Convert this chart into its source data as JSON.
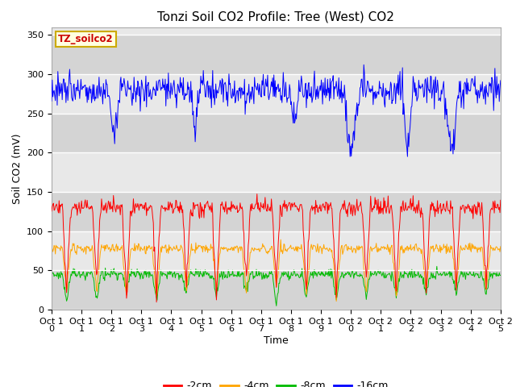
{
  "title": "Tonzi Soil CO2 Profile: Tree (West) CO2",
  "ylabel": "Soil CO2 (mV)",
  "xlabel": "Time",
  "label_box": "TZ_soilco2",
  "x_tick_labels": [
    "Oct 1\n0",
    "Oct 1\n1",
    "Oct 1\n2",
    "Oct 1\n3",
    "Oct 1\n4",
    "Oct 1\n5",
    "Oct 1\n6",
    "Oct 1\n7",
    "Oct 1\n8",
    "Oct 1\n9",
    "Oct 2\n0",
    "Oct 2\n1",
    "Oct 2\n2",
    "Oct 2\n3",
    "Oct 2\n4",
    "Oct 2\n5"
  ],
  "ylim": [
    0,
    360
  ],
  "yticks": [
    0,
    50,
    100,
    150,
    200,
    250,
    300,
    350
  ],
  "colors": {
    "2cm": "#ff0000",
    "4cm": "#ffa500",
    "8cm": "#00bb00",
    "16cm": "#0000ff"
  },
  "legend_labels": [
    "-2cm",
    "-4cm",
    "-8cm",
    "-16cm"
  ],
  "background_color": "#ffffff",
  "plot_bg_color": "#e8e8e8",
  "band_colors": [
    "#d8d8d8",
    "#e8e8e8"
  ],
  "title_fontsize": 11,
  "label_fontsize": 9,
  "tick_fontsize": 8
}
